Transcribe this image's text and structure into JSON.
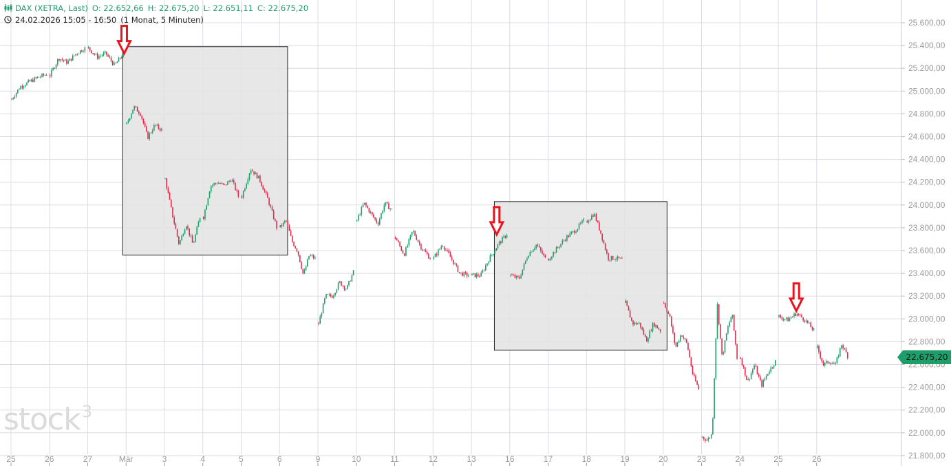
{
  "header": {
    "instrument": "DAX (XETRA, Last)",
    "open": "O: 22.652,66",
    "high": "H: 22.675,20",
    "low": "L: 22.651,11",
    "close": "C: 22.675,20",
    "datetime": "24.02.2026 15:05 - 16:50",
    "period": "(1 Monat, 5 Minuten)",
    "icons": [
      "candlestick-icon",
      "clock-icon"
    ]
  },
  "watermark": "stock3",
  "last_price_label": "22.675,20",
  "colors": {
    "up": "#1e9e6a",
    "down": "#e0294a",
    "grid": "#dcdce6",
    "box_fill": "#e3e3e3",
    "arrow": "#e8141e",
    "axis_text": "#9a9a9a"
  },
  "chart_data": {
    "type": "candlestick",
    "title": "",
    "x_tick_labels": [
      "25",
      "26",
      "27",
      "Mär",
      "3",
      "4",
      "5",
      "6",
      "9",
      "10",
      "11",
      "12",
      "13",
      "16",
      "17",
      "18",
      "19",
      "20",
      "23",
      "24",
      "25",
      "26"
    ],
    "y_ticks": [
      25600,
      25400,
      25200,
      25000,
      24800,
      24600,
      24400,
      24200,
      24000,
      23800,
      23600,
      23400,
      23200,
      23000,
      22800,
      22600,
      22400,
      22200,
      22000,
      21800
    ],
    "y_tick_labels": [
      "25.600,00",
      "25.400,00",
      "25.200,00",
      "25.000,00",
      "24.800,00",
      "24.600,00",
      "24.400,00",
      "24.200,00",
      "24.000,00",
      "23.800,00",
      "23.600,00",
      "23.400,00",
      "23.200,00",
      "23.000,00",
      "22.800,00",
      "22.600,00",
      "22.400,00",
      "22.200,00",
      "22.000,00",
      "21.800,00"
    ],
    "ylim": [
      21780,
      25660
    ],
    "grid": true,
    "axis_position": "right",
    "days": [
      {
        "day": "25",
        "prices": [
          24930,
          25040,
          25080,
          25120,
          25147
        ]
      },
      {
        "day": "26",
        "prices": [
          25140,
          25290,
          25250,
          25330,
          25376
        ]
      },
      {
        "day": "27",
        "prices": [
          25376,
          25300,
          25330,
          25225,
          25328
        ]
      },
      {
        "day": "Mär",
        "prices": [
          24712,
          24863,
          24800,
          24591,
          24700,
          24660
        ]
      },
      {
        "day": "3",
        "prices": [
          24228,
          23926,
          23654,
          23836,
          23650,
          23896
        ]
      },
      {
        "day": "4",
        "prices": [
          23896,
          24168,
          24198,
          24168,
          24230,
          24077
        ]
      },
      {
        "day": "5",
        "prices": [
          24077,
          24319,
          24230,
          24047,
          23805
        ]
      },
      {
        "day": "6",
        "prices": [
          23805,
          23866,
          23685,
          23594,
          23382,
          23560,
          23530
        ]
      },
      {
        "day": "9",
        "prices": [
          22960,
          23201,
          23201,
          23322,
          23262,
          23412
        ]
      },
      {
        "day": "10",
        "prices": [
          23866,
          24017,
          23926,
          23836,
          24017,
          23956
        ]
      },
      {
        "day": "11",
        "prices": [
          23715,
          23564,
          23775,
          23624,
          23533
        ]
      },
      {
        "day": "12",
        "prices": [
          23533,
          23654,
          23533,
          23400,
          23382
        ]
      },
      {
        "day": "13",
        "prices": [
          23382,
          23382,
          23533,
          23654,
          23745
        ]
      },
      {
        "day": "16",
        "prices": [
          23382,
          23352,
          23564,
          23654,
          23530
        ]
      },
      {
        "day": "17",
        "prices": [
          23530,
          23624,
          23715,
          23775,
          23860
        ]
      },
      {
        "day": "18",
        "prices": [
          23860,
          23926,
          23745,
          23533,
          23533,
          23520
        ]
      },
      {
        "day": "19",
        "prices": [
          23141,
          22960,
          22960,
          22809,
          22960,
          22899
        ]
      },
      {
        "day": "20",
        "prices": [
          23141,
          23020,
          22748,
          22869,
          22778,
          22507,
          22386
        ]
      },
      {
        "day": "23",
        "prices": [
          21963,
          21933,
          21993,
          23141,
          22658,
          22899,
          23050,
          22658
        ]
      },
      {
        "day": "24",
        "prices": [
          22658,
          22446,
          22597,
          22416,
          22537,
          22628
        ]
      },
      {
        "day": "25",
        "prices": [
          23020,
          22990,
          23050,
          22990,
          22899
        ]
      },
      {
        "day": "26",
        "prices": [
          22748,
          22597,
          22628,
          22597,
          22778,
          22675
        ],
        "partial": 0.9
      }
    ],
    "last_price": 22675.2,
    "annotations": {
      "boxes": [
        {
          "start_day_index": 3,
          "start_offset": -0.09,
          "end_day_index": 7,
          "end_offset": 0.21,
          "top": 25390,
          "bottom": 23560
        },
        {
          "start_day_index": 13,
          "start_offset": -0.4,
          "end_day_index": 17,
          "end_offset": 0.1,
          "top": 24030,
          "bottom": 22725
        }
      ],
      "arrows": [
        {
          "day_index": 3,
          "offset": -0.05,
          "tip_price": 25330
        },
        {
          "day_index": 12,
          "offset": 0.66,
          "tip_price": 23740
        },
        {
          "day_index": 20,
          "offset": 0.47,
          "tip_price": 23070
        }
      ]
    }
  }
}
